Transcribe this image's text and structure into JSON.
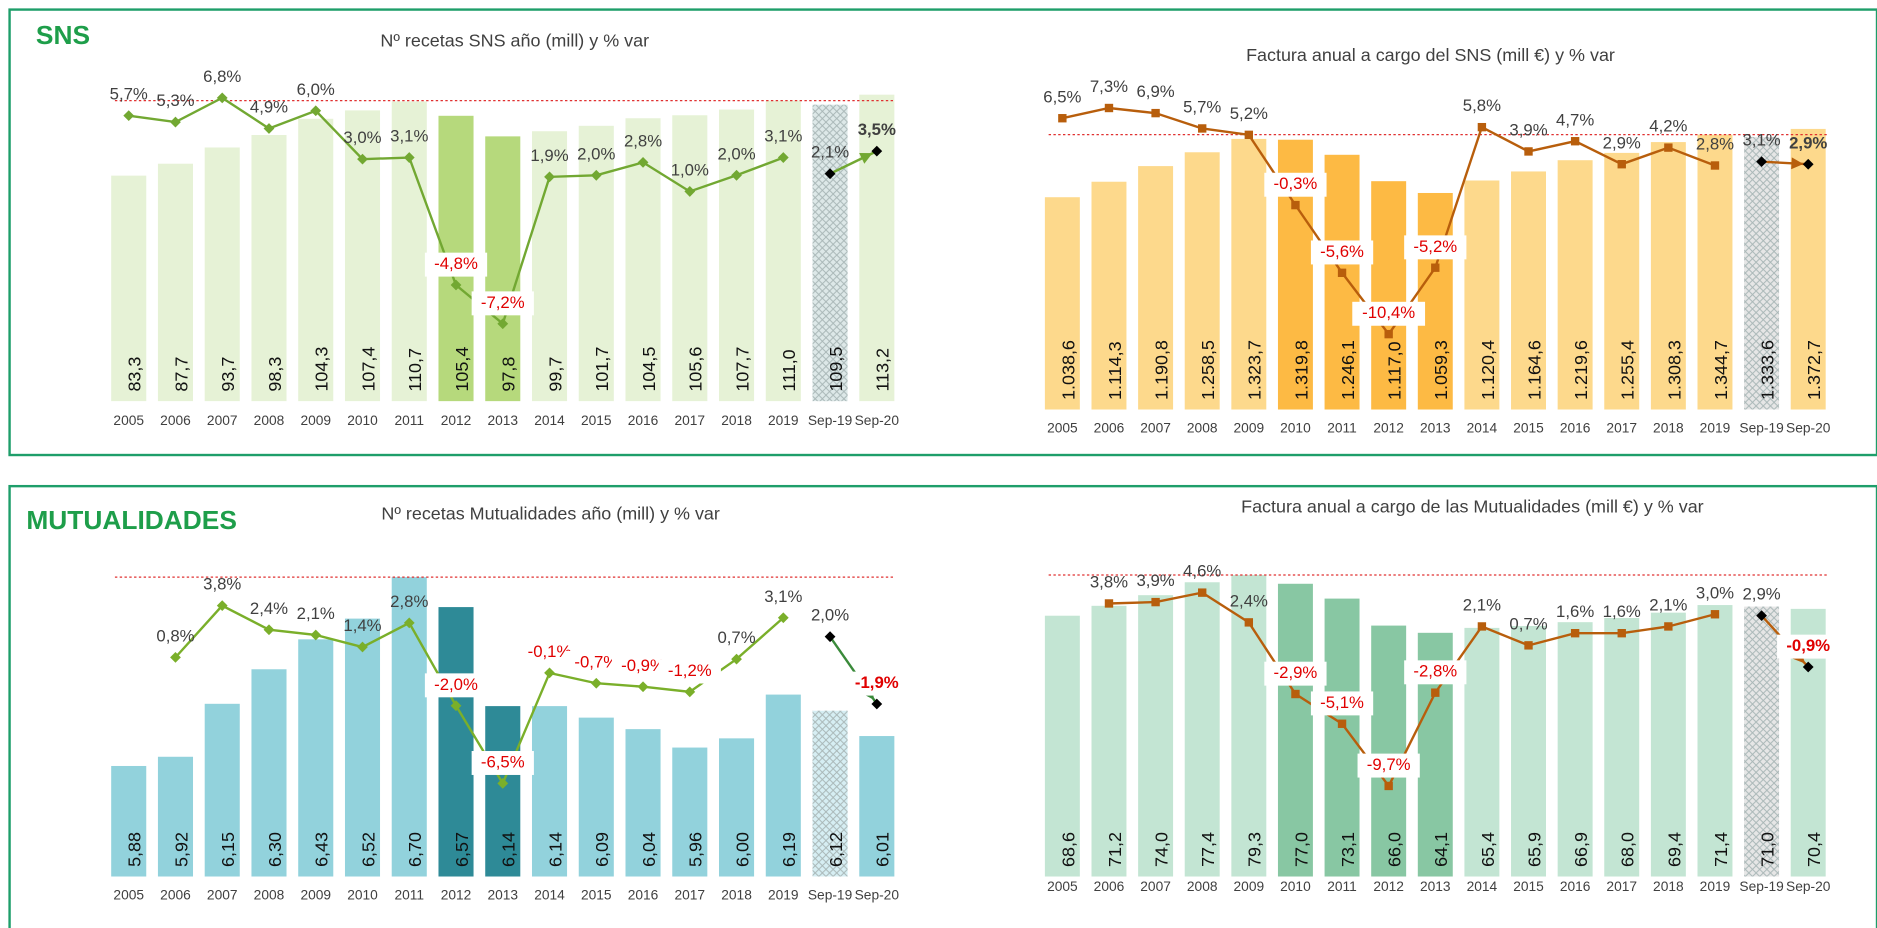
{
  "panels": [
    {
      "label": "SNS"
    },
    {
      "label": "MUTUALIDADES"
    }
  ],
  "chart_data": [
    {
      "type": "combo",
      "title": "Nº recetas SNS año (mill) y % var",
      "categories": [
        "2005",
        "2006",
        "2007",
        "2008",
        "2009",
        "2010",
        "2011",
        "2012",
        "2013",
        "2014",
        "2015",
        "2016",
        "2017",
        "2018",
        "2019",
        "Sep-19",
        "Sep-20"
      ],
      "ylim": [
        0,
        115
      ],
      "y2lim": [
        -12,
        7.3
      ],
      "hatched_bar": 15,
      "series": [
        {
          "type": "bar",
          "colors": [
            "#e6f2d6",
            "#e6f2d6",
            "#e6f2d6",
            "#e6f2d6",
            "#e6f2d6",
            "#e6f2d6",
            "#e6f2d6",
            "#b6d97c",
            "#b6d97c",
            "#e6f2d6",
            "#e6f2d6",
            "#e6f2d6",
            "#e6f2d6",
            "#e6f2d6",
            "#e6f2d6",
            "#dde8e8",
            "#e6f2d6"
          ],
          "values": [
            83.3,
            87.7,
            93.7,
            98.3,
            104.3,
            107.4,
            110.7,
            105.4,
            97.8,
            99.7,
            101.7,
            104.5,
            105.6,
            107.7,
            111.0,
            109.5,
            113.2
          ],
          "value_labels": [
            "83,3",
            "87,7",
            "93,7",
            "98,3",
            "104,3",
            "107,4",
            "110,7",
            "105,4",
            "97,8",
            "99,7",
            "101,7",
            "104,5",
            "105,6",
            "107,7",
            "111,0",
            "109,5",
            "113,2"
          ]
        },
        {
          "type": "line",
          "axis": "y2",
          "color": "#72a832",
          "marker": "diamond",
          "values": [
            5.7,
            5.3,
            6.8,
            4.9,
            6.0,
            3.0,
            3.1,
            -4.8,
            -7.2,
            1.9,
            2.0,
            2.8,
            1.0,
            2.0,
            3.1,
            null,
            null
          ],
          "value_labels": [
            "5,7%",
            "5,3%",
            "6,8%",
            "4,9%",
            "6,0%",
            "3,0%",
            "3,1%",
            "-4,8%",
            "-7,2%",
            "1,9%",
            "2,0%",
            "2,8%",
            "1,0%",
            "2,0%",
            "3,1%",
            null,
            null
          ]
        },
        {
          "type": "line",
          "axis": "y2",
          "color": "#72a832",
          "marker": "diamond",
          "marker_color": "#000000",
          "values": [
            null,
            null,
            null,
            null,
            null,
            null,
            null,
            null,
            null,
            null,
            null,
            null,
            null,
            null,
            null,
            2.1,
            3.5
          ],
          "value_labels": [
            null,
            null,
            null,
            null,
            null,
            null,
            null,
            null,
            null,
            null,
            null,
            null,
            null,
            null,
            null,
            "2,1%",
            "3,5%"
          ]
        }
      ]
    },
    {
      "type": "combo",
      "title": "Factura anual a cargo del SNS (mill €) y % var",
      "categories": [
        "2005",
        "2006",
        "2007",
        "2008",
        "2009",
        "2010",
        "2011",
        "2012",
        "2013",
        "2014",
        "2015",
        "2016",
        "2017",
        "2018",
        "2019",
        "Sep-19",
        "Sep-20"
      ],
      "ylim": [
        0,
        1400
      ],
      "y2lim": [
        -16.3,
        6.1
      ],
      "hatched_bar": 15,
      "series": [
        {
          "type": "bar",
          "colors": [
            "#fdd98c",
            "#fdd98c",
            "#fdd98c",
            "#fdd98c",
            "#fdd98c",
            "#fdba44",
            "#fdba44",
            "#fdba44",
            "#fdba44",
            "#fdd98c",
            "#fdd98c",
            "#fdd98c",
            "#fdd98c",
            "#fdd98c",
            "#fdd98c",
            "#e6e6e6",
            "#fdd98c"
          ],
          "values": [
            1038.6,
            1114.3,
            1190.8,
            1258.5,
            1323.7,
            1319.8,
            1246.1,
            1117.0,
            1059.3,
            1120.4,
            1164.6,
            1219.6,
            1255.4,
            1308.3,
            1344.7,
            1333.6,
            1372.7
          ],
          "value_labels": [
            "1.038,6",
            "1.114,3",
            "1.190,8",
            "1.258,5",
            "1.323,7",
            "1.319,8",
            "1.246,1",
            "1.117,0",
            "1.059,3",
            "1.120,4",
            "1.164,6",
            "1.219,6",
            "1.255,4",
            "1.308,3",
            "1.344,7",
            "1.333,6",
            "1.372,7"
          ]
        },
        {
          "type": "line",
          "axis": "y2",
          "color": "#b85e0c",
          "marker": "square",
          "values": [
            6.5,
            7.3,
            6.9,
            5.7,
            5.2,
            -0.3,
            -5.6,
            -10.4,
            -5.2,
            5.8,
            3.9,
            4.7,
            2.9,
            4.2,
            2.8,
            null,
            null
          ],
          "value_labels": [
            "6,5%",
            "7,3%",
            "6,9%",
            "5,7%",
            "5,2%",
            "-0,3%",
            "-5,6%",
            "-10,4%",
            "-5,2%",
            "5,8%",
            "3,9%",
            "4,7%",
            "2,9%",
            "4,2%",
            "2,8%",
            null,
            null
          ]
        },
        {
          "type": "line",
          "axis": "y2",
          "color": "#b85e0c",
          "marker": "diamond",
          "marker_color": "#000000",
          "values": [
            null,
            null,
            null,
            null,
            null,
            null,
            null,
            null,
            null,
            null,
            null,
            null,
            null,
            null,
            null,
            3.1,
            2.9
          ],
          "value_labels": [
            null,
            null,
            null,
            null,
            null,
            null,
            null,
            null,
            null,
            null,
            null,
            null,
            null,
            null,
            null,
            "3,1%",
            "2,9%"
          ]
        }
      ]
    },
    {
      "type": "combo",
      "title": "Nº recetas Mutualidades año (mill) y % var",
      "categories": [
        "2005",
        "2006",
        "2007",
        "2008",
        "2009",
        "2010",
        "2011",
        "2012",
        "2013",
        "2014",
        "2015",
        "2016",
        "2017",
        "2018",
        "2019",
        "Sep-19",
        "Sep-20"
      ],
      "ylim": [
        5.4,
        6.7
      ],
      "y2lim": [
        -11.9,
        5.45
      ],
      "hatched_bar": 15,
      "series": [
        {
          "type": "bar",
          "colors": [
            "#92d2dc",
            "#92d2dc",
            "#92d2dc",
            "#92d2dc",
            "#92d2dc",
            "#92d2dc",
            "#92d2dc",
            "#2e8a97",
            "#2e8a97",
            "#92d2dc",
            "#92d2dc",
            "#92d2dc",
            "#92d2dc",
            "#92d2dc",
            "#92d2dc",
            "#d6eef3",
            "#92d2dc"
          ],
          "values": [
            5.88,
            5.92,
            6.15,
            6.3,
            6.43,
            6.52,
            6.7,
            6.57,
            6.14,
            6.14,
            6.09,
            6.04,
            5.96,
            6.0,
            6.19,
            6.12,
            6.01
          ],
          "value_labels": [
            "5,88",
            "5,92",
            "6,15",
            "6,30",
            "6,43",
            "6,52",
            "6,70",
            "6,57",
            "6,14",
            "6,14",
            "6,09",
            "6,04",
            "5,96",
            "6,00",
            "6,19",
            "6,12",
            "6,01"
          ]
        },
        {
          "type": "line",
          "axis": "y2",
          "color": "#7aaf2a",
          "marker": "diamond",
          "values": [
            null,
            0.8,
            3.8,
            2.4,
            2.1,
            1.4,
            2.8,
            -2.0,
            -6.5,
            -0.1,
            -0.7,
            -0.9,
            -1.2,
            0.7,
            3.1,
            null,
            null
          ],
          "value_labels": [
            null,
            "0,8%",
            "3,8%",
            "2,4%",
            "2,1%",
            "1,4%",
            "2,8%",
            "-2,0%",
            "-6,5%",
            "-0,1%",
            "-0,7%",
            "-0,9%",
            "-1,2%",
            "0,7%",
            "3,1%",
            null,
            null
          ]
        },
        {
          "type": "line",
          "axis": "y2",
          "color": "#3a8a3a",
          "marker": "diamond",
          "marker_color": "#000000",
          "values": [
            null,
            null,
            null,
            null,
            null,
            null,
            null,
            null,
            null,
            null,
            null,
            null,
            null,
            null,
            null,
            2.0,
            -1.9
          ],
          "value_labels": [
            null,
            null,
            null,
            null,
            null,
            null,
            null,
            null,
            null,
            null,
            null,
            null,
            null,
            null,
            null,
            "2,0%",
            "-1,9%"
          ]
        }
      ]
    },
    {
      "type": "combo",
      "title": "Factura anual a cargo de las Mutualidades (mill €) y % var",
      "categories": [
        "2005",
        "2006",
        "2007",
        "2008",
        "2009",
        "2010",
        "2011",
        "2012",
        "2013",
        "2014",
        "2015",
        "2016",
        "2017",
        "2018",
        "2019",
        "Sep-19",
        "Sep-20"
      ],
      "ylim": [
        0,
        80
      ],
      "y2lim": [
        -16.4,
        6.1
      ],
      "hatched_bar": 15,
      "series": [
        {
          "type": "bar",
          "colors": [
            "#c3e5d3",
            "#c3e5d3",
            "#c3e5d3",
            "#c3e5d3",
            "#c3e5d3",
            "#88c7a3",
            "#88c7a3",
            "#88c7a3",
            "#88c7a3",
            "#c3e5d3",
            "#c3e5d3",
            "#c3e5d3",
            "#c3e5d3",
            "#c3e5d3",
            "#c3e5d3",
            "#e6e6e6",
            "#c3e5d3"
          ],
          "values": [
            68.6,
            71.2,
            74.0,
            77.4,
            79.3,
            77.0,
            73.1,
            66.0,
            64.1,
            65.4,
            65.9,
            66.9,
            68.0,
            69.4,
            71.4,
            71.0,
            70.4
          ],
          "value_labels": [
            "68,6",
            "71,2",
            "74,0",
            "77,4",
            "79,3",
            "77,0",
            "73,1",
            "66,0",
            "64,1",
            "65,4",
            "65,9",
            "66,9",
            "68,0",
            "69,4",
            "71,4",
            "71,0",
            "70,4"
          ]
        },
        {
          "type": "line",
          "axis": "y2",
          "color": "#b85e0c",
          "marker": "square",
          "values": [
            null,
            3.8,
            3.9,
            4.6,
            2.4,
            -2.9,
            -5.1,
            -9.7,
            -2.8,
            2.1,
            0.7,
            1.6,
            1.6,
            2.1,
            3.0,
            null,
            null
          ],
          "value_labels": [
            null,
            "3,8%",
            "3,9%",
            "4,6%",
            "2,4%",
            "-2,9%",
            "-5,1%",
            "-9,7%",
            "-2,8%",
            "2,1%",
            "0,7%",
            "1,6%",
            "1,6%",
            "2,1%",
            "3,0%",
            null,
            null
          ]
        },
        {
          "type": "line",
          "axis": "y2",
          "color": "#b85e0c",
          "marker": "diamond",
          "marker_color": "#000000",
          "values": [
            null,
            null,
            null,
            null,
            null,
            null,
            null,
            null,
            null,
            null,
            null,
            null,
            null,
            null,
            null,
            2.9,
            -0.9
          ],
          "value_labels": [
            null,
            null,
            null,
            null,
            null,
            null,
            null,
            null,
            null,
            null,
            null,
            null,
            null,
            null,
            null,
            "2,9%",
            "-0,9%"
          ]
        }
      ]
    }
  ]
}
